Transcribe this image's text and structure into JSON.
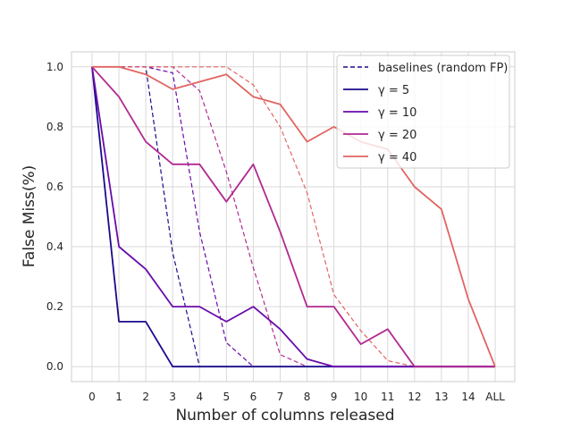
{
  "chart_data": {
    "type": "line",
    "xlabel": "Number of columns released",
    "ylabel": "False Miss(%)",
    "categories": [
      "0",
      "1",
      "2",
      "3",
      "4",
      "5",
      "6",
      "7",
      "8",
      "9",
      "10",
      "11",
      "12",
      "13",
      "14",
      "ALL"
    ],
    "yticks": [
      "0.0",
      "0.2",
      "0.4",
      "0.6",
      "0.8",
      "1.0"
    ],
    "ylim": [
      -0.05,
      1.05
    ],
    "grid": true,
    "legend_position": "top-right",
    "legend": {
      "baseline_label": "baselines (random FP)",
      "entries": [
        "γ = 5",
        "γ = 10",
        "γ = 20",
        "γ = 40"
      ]
    },
    "series": [
      {
        "name": "γ = 5",
        "color": "#1a0a8c",
        "style": "solid",
        "values": [
          1.0,
          0.15,
          0.15,
          0.0,
          0.0,
          0.0,
          0.0,
          0.0,
          0.0,
          0.0,
          0.0,
          0.0,
          0.0,
          0.0,
          0.0,
          0.0
        ]
      },
      {
        "name": "γ = 10",
        "color": "#6a0aab",
        "style": "solid",
        "values": [
          1.0,
          0.4,
          0.325,
          0.2,
          0.2,
          0.15,
          0.2,
          0.125,
          0.025,
          0.0,
          0.0,
          0.0,
          0.0,
          0.0,
          0.0,
          0.0
        ]
      },
      {
        "name": "γ = 20",
        "color": "#b12a90",
        "style": "solid",
        "values": [
          1.0,
          0.9,
          0.75,
          0.675,
          0.675,
          0.55,
          0.675,
          0.45,
          0.2,
          0.2,
          0.075,
          0.125,
          0.0,
          0.0,
          0.0,
          0.0
        ]
      },
      {
        "name": "γ = 40",
        "color": "#e16462",
        "style": "solid",
        "values": [
          1.0,
          1.0,
          0.975,
          0.925,
          0.95,
          0.975,
          0.9,
          0.875,
          0.75,
          0.8,
          0.75,
          0.725,
          0.6,
          0.525,
          0.225,
          0.0
        ]
      }
    ],
    "baselines": [
      {
        "color": "#1a0a8c",
        "style": "dashed",
        "values": [
          1.0,
          1.0,
          1.0,
          0.38,
          0.0,
          0.0,
          0.0,
          0.0,
          0.0,
          0.0,
          0.0,
          0.0,
          0.0,
          0.0,
          0.0,
          0.0
        ]
      },
      {
        "color": "#6a0aab",
        "style": "dashed",
        "values": [
          1.0,
          1.0,
          1.0,
          0.98,
          0.45,
          0.08,
          0.0,
          0.0,
          0.0,
          0.0,
          0.0,
          0.0,
          0.0,
          0.0,
          0.0,
          0.0
        ]
      },
      {
        "color": "#b12a90",
        "style": "dashed",
        "values": [
          1.0,
          1.0,
          1.0,
          1.0,
          0.92,
          0.65,
          0.33,
          0.04,
          0.0,
          0.0,
          0.0,
          0.0,
          0.0,
          0.0,
          0.0,
          0.0
        ]
      },
      {
        "color": "#e16462",
        "style": "dashed",
        "values": [
          1.0,
          1.0,
          1.0,
          1.0,
          1.0,
          1.0,
          0.94,
          0.8,
          0.58,
          0.24,
          0.12,
          0.02,
          0.0,
          0.0,
          0.0,
          0.0
        ]
      }
    ]
  }
}
